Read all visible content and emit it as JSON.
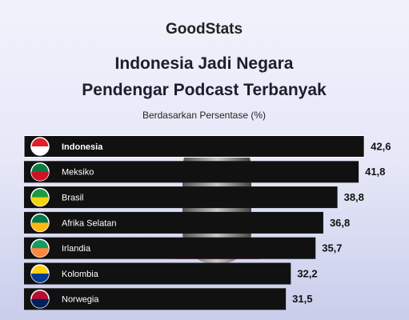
{
  "brand": "GoodStats",
  "chart_data": {
    "type": "barh",
    "title": "Indonesia Jadi Negara Pendengar Podcast Terbanyak",
    "subtitle": "Berdasarkan Persentase (%)",
    "categories": [
      "Indonesia",
      "Meksiko",
      "Brasil",
      "Afrika Selatan",
      "Irlandia",
      "Kolombia",
      "Norwegia"
    ],
    "values": [
      42.6,
      41.8,
      38.8,
      36.8,
      35.7,
      32.2,
      31.5
    ],
    "value_labels": [
      "42,6",
      "41,8",
      "38,8",
      "36,8",
      "35,7",
      "32,2",
      "31,5"
    ],
    "color": "#111111"
  }
}
